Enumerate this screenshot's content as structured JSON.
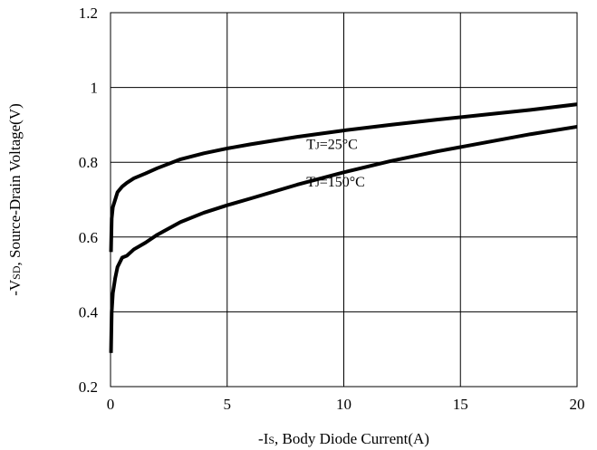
{
  "chart_data": {
    "type": "line",
    "title": "",
    "xlabel": {
      "prefix": "-I",
      "sub": "S",
      "rest": ", Body Diode Current(A)"
    },
    "ylabel": {
      "prefix": "-V",
      "sub": "SD",
      "rest": ", Source-Drain Voltage(V)"
    },
    "xlim": [
      0,
      20
    ],
    "ylim": [
      0.2,
      1.2
    ],
    "xticks": [
      0,
      5,
      10,
      15,
      20
    ],
    "yticks": [
      0.2,
      0.4,
      0.6,
      0.8,
      1.0,
      1.2
    ],
    "xtick_labels": [
      "0",
      "5",
      "10",
      "15",
      "20"
    ],
    "ytick_labels": [
      "0.2",
      "0.4",
      "0.6",
      "0.8",
      "1",
      "1.2"
    ],
    "grid": true,
    "series": [
      {
        "name": "TJ=25°C",
        "color": "#000000",
        "x": [
          0.02,
          0.05,
          0.1,
          0.2,
          0.3,
          0.5,
          0.7,
          1.0,
          1.5,
          2.0,
          3.0,
          4.0,
          5.0,
          6.0,
          8.0,
          10.0,
          12.0,
          14.0,
          16.0,
          18.0,
          20.0
        ],
        "y": [
          0.56,
          0.65,
          0.68,
          0.7,
          0.72,
          0.735,
          0.745,
          0.757,
          0.77,
          0.784,
          0.808,
          0.824,
          0.837,
          0.848,
          0.868,
          0.885,
          0.9,
          0.914,
          0.927,
          0.94,
          0.955
        ]
      },
      {
        "name": "TJ=150°C",
        "color": "#000000",
        "x": [
          0.02,
          0.05,
          0.1,
          0.2,
          0.3,
          0.5,
          0.7,
          1.0,
          1.5,
          2.0,
          3.0,
          4.0,
          5.0,
          6.0,
          8.0,
          10.0,
          12.0,
          14.0,
          16.0,
          18.0,
          20.0
        ],
        "y": [
          0.29,
          0.4,
          0.45,
          0.49,
          0.52,
          0.545,
          0.55,
          0.567,
          0.585,
          0.606,
          0.64,
          0.665,
          0.685,
          0.703,
          0.74,
          0.773,
          0.803,
          0.829,
          0.852,
          0.875,
          0.895
        ]
      }
    ],
    "annotations": [
      {
        "prefix": "T",
        "sub": "J",
        "rest": "=25°C",
        "x": 8.4,
        "y": 0.835
      },
      {
        "prefix": "T",
        "sub": "J",
        "rest": "=150°C",
        "x": 8.4,
        "y": 0.735
      }
    ]
  }
}
